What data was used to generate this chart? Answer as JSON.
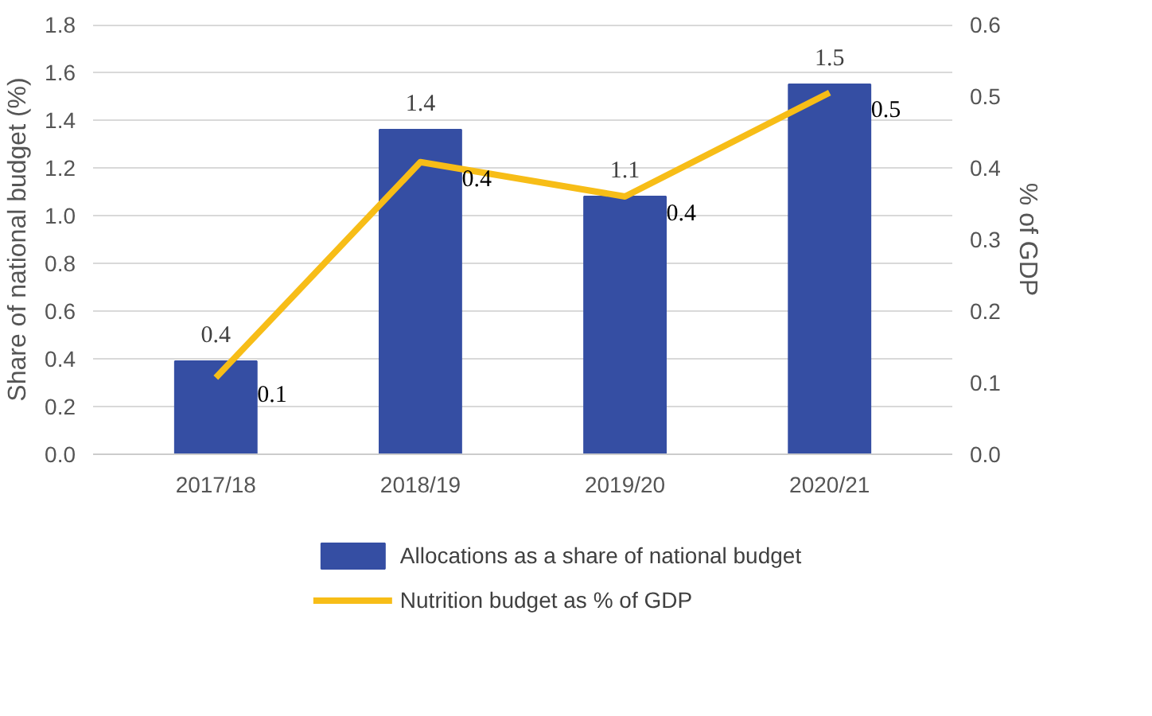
{
  "chart_data": {
    "type": "bar",
    "ylabel": "Share of national budget (%)",
    "y2label": "% of GDP",
    "categories": [
      "2017/18",
      "2018/19",
      "2019/20",
      "2020/21"
    ],
    "series": [
      {
        "name": "Allocations as a share of national budget",
        "color": "#354ea3",
        "values": [
          0.39,
          1.36,
          1.08,
          1.55
        ],
        "value_labels": [
          "0.4",
          "1.4",
          "1.1",
          "1.5"
        ]
      },
      {
        "name": "Nutrition budget as % of GDP",
        "type": "line",
        "axis": "y2",
        "color": "#f7bd17",
        "values": [
          0.107,
          0.408,
          0.36,
          0.505
        ],
        "value_labels": [
          "0.1",
          "0.4",
          "0.4",
          "0.5"
        ]
      }
    ],
    "ylim": [
      0,
      1.8
    ],
    "yticks": [
      "0.0",
      "0.2",
      "0.4",
      "0.6",
      "0.8",
      "1.0",
      "1.2",
      "1.4",
      "1.6",
      "1.8"
    ],
    "y2lim": [
      0,
      0.6
    ],
    "y2ticks": [
      "0.0",
      "0.1",
      "0.2",
      "0.3",
      "0.4",
      "0.5",
      "0.6"
    ],
    "grid": "y",
    "legend": "bottom"
  }
}
